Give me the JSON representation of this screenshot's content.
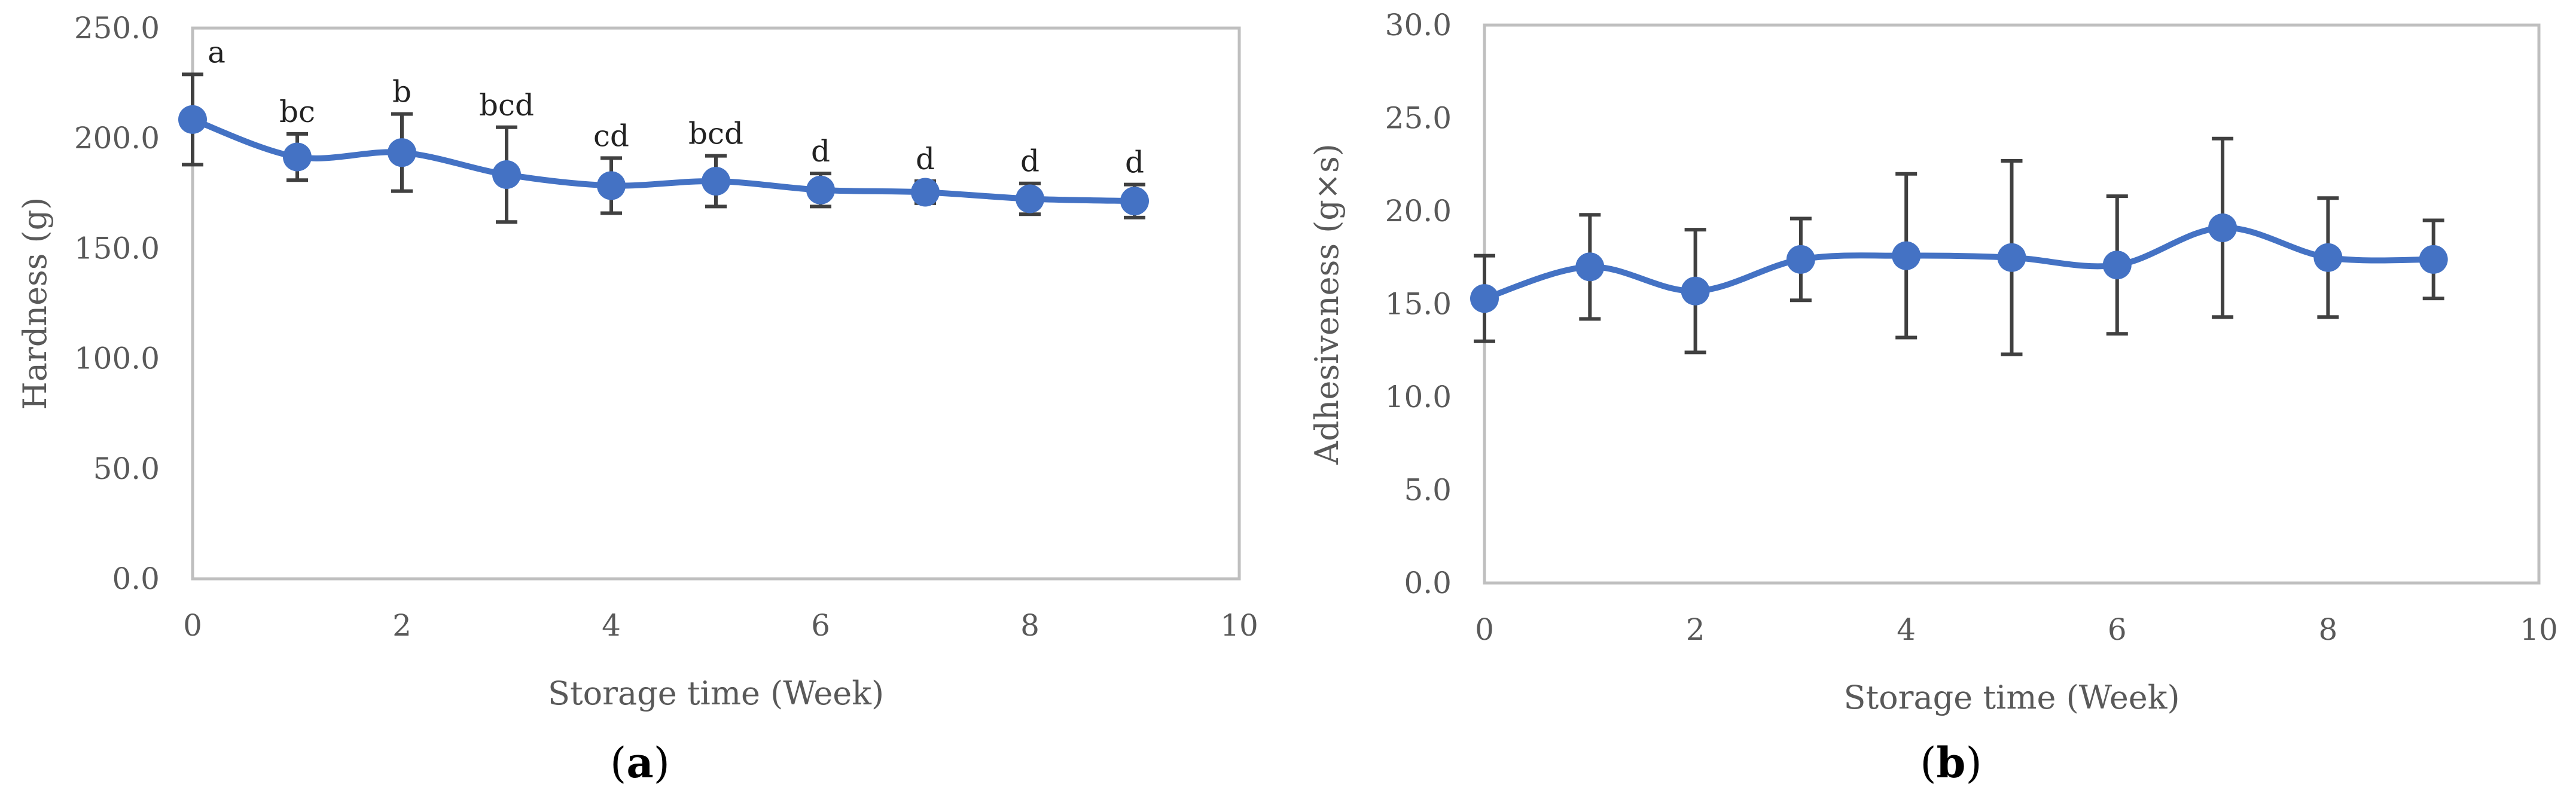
{
  "chart_data": [
    {
      "type": "line",
      "panel_label": "a",
      "xlabel": "Storage time (Week)",
      "ylabel": "Hardness (g)",
      "xlim": [
        0,
        10
      ],
      "ylim": [
        0,
        250
      ],
      "x_ticks": [
        "0",
        "2",
        "4",
        "6",
        "8",
        "10"
      ],
      "y_ticks": [
        "0.0",
        "50.0",
        "100.0",
        "150.0",
        "200.0",
        "250.0"
      ],
      "x": [
        0,
        1,
        2,
        3,
        4,
        5,
        6,
        7,
        8,
        9
      ],
      "series": [
        {
          "values": [
            208.5,
            191.5,
            193.5,
            183.5,
            178.5,
            180.5,
            176.5,
            175.5,
            172.5,
            171.5
          ],
          "error": [
            20.5,
            10.5,
            17.5,
            21.5,
            12.5,
            11.5,
            7.5,
            5.0,
            7.0,
            7.5
          ],
          "labels": [
            "a",
            "bc",
            "b",
            "bcd",
            "cd",
            "bcd",
            "d",
            "d",
            "d",
            "d"
          ]
        }
      ],
      "grid": false,
      "colors": {
        "line": "#4472C4",
        "error_bar": "#404040",
        "plot_border": "#BFBFBF"
      }
    },
    {
      "type": "line",
      "panel_label": "b",
      "xlabel": "Storage time (Week)",
      "ylabel": "Adhesiveness (g×s)",
      "xlim": [
        0,
        10
      ],
      "ylim": [
        0,
        30
      ],
      "x_ticks": [
        "0",
        "2",
        "4",
        "6",
        "8",
        "10"
      ],
      "y_ticks": [
        "0.0",
        "5.0",
        "10.0",
        "15.0",
        "20.0",
        "25.0",
        "30.0"
      ],
      "x": [
        0,
        1,
        2,
        3,
        4,
        5,
        6,
        7,
        8,
        9
      ],
      "series": [
        {
          "values": [
            15.3,
            17.0,
            15.7,
            17.4,
            17.6,
            17.5,
            17.1,
            19.1,
            17.5,
            17.4
          ],
          "error": [
            2.3,
            2.8,
            3.3,
            2.2,
            4.4,
            5.2,
            3.7,
            4.8,
            3.2,
            2.1
          ]
        }
      ],
      "grid": false,
      "colors": {
        "line": "#4472C4",
        "error_bar": "#404040",
        "plot_border": "#BFBFBF"
      }
    }
  ]
}
